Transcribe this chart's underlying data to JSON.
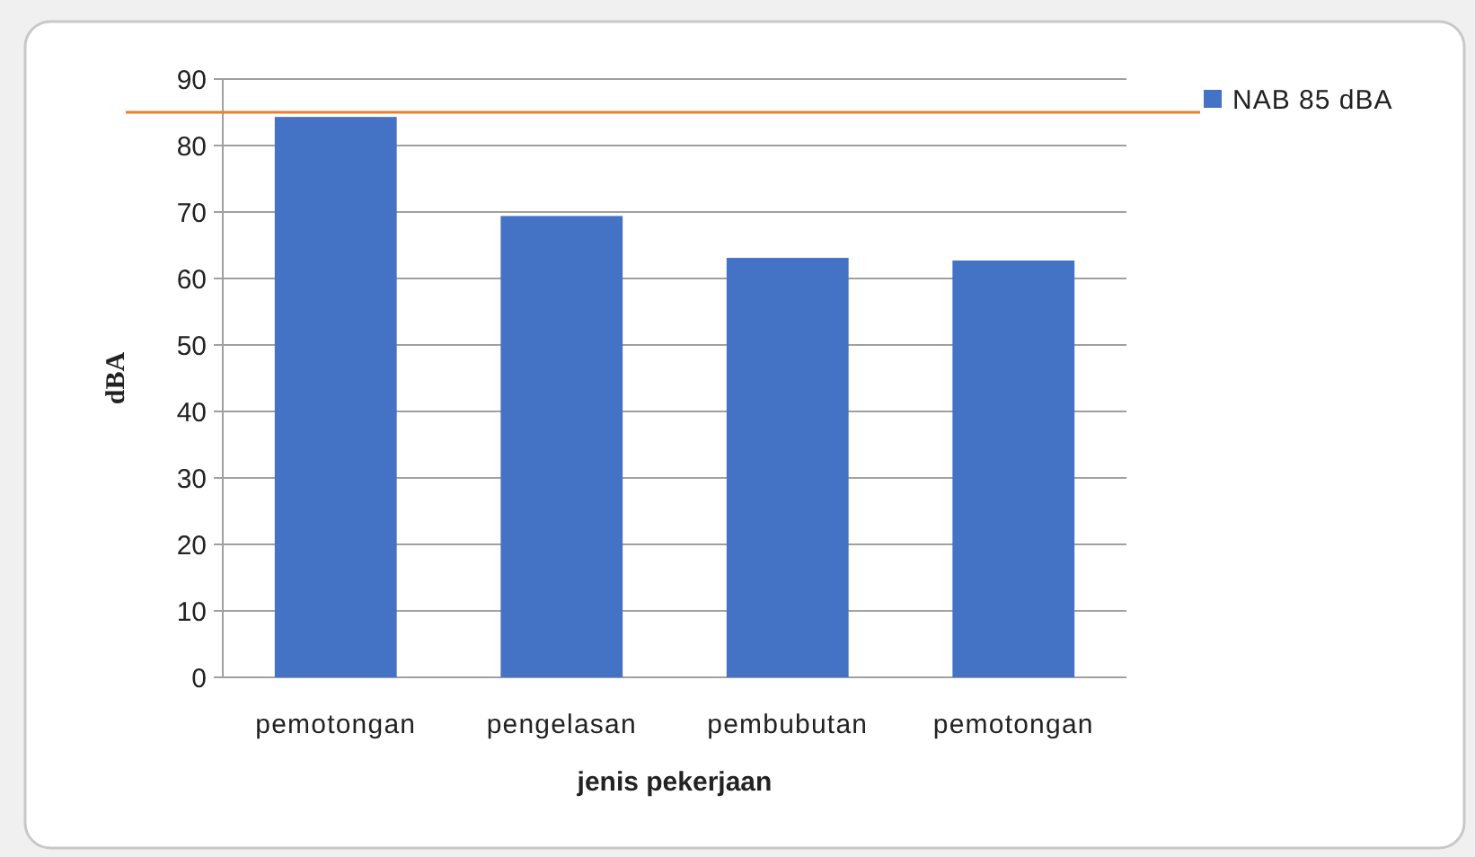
{
  "chart_data": {
    "type": "bar",
    "xlabel": "jenis pekerjaan",
    "ylabel": "dBA",
    "categories": [
      "pemotongan",
      "pengelasan",
      "pembubutan",
      "pemotongan"
    ],
    "series": [
      {
        "name": "NAB 85 dBA",
        "color": "#4472c4",
        "values": [
          84.3,
          69.4,
          63.1,
          62.7
        ]
      }
    ],
    "ylim": [
      0,
      90
    ],
    "yticks": [
      0,
      10,
      20,
      30,
      40,
      50,
      60,
      70,
      80,
      90
    ],
    "grid": "y",
    "legend": "top right",
    "ref_lines": [
      {
        "axis": "y",
        "value": 85,
        "color": "#ed7d31"
      }
    ]
  }
}
